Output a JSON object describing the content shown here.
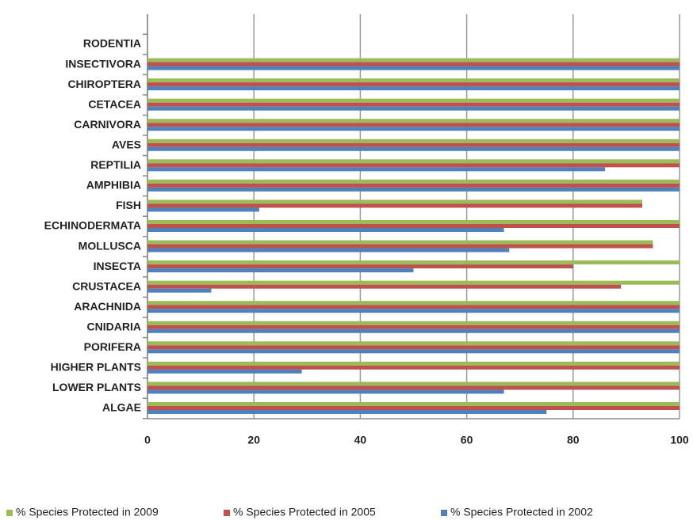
{
  "chart_data": {
    "type": "barh",
    "categories": [
      "RODENTIA",
      "INSECTIVORA",
      "CHIROPTERA",
      "CETACEA",
      "CARNIVORA",
      "AVES",
      "REPTILIA",
      "AMPHIBIA",
      "FISH",
      "ECHINODERMATA",
      "MOLLUSCA",
      "INSECTA",
      "CRUSTACEA",
      "ARACHNIDA",
      "CNIDARIA",
      "PORIFERA",
      "HIGHER PLANTS",
      "LOWER PLANTS",
      "ALGAE"
    ],
    "series": [
      {
        "name": "% Species Protected in 2009",
        "color": "#9bbb59",
        "values": [
          0,
          100,
          100,
          100,
          100,
          100,
          100,
          100,
          93,
          100,
          95,
          100,
          100,
          100,
          100,
          100,
          100,
          100,
          100
        ]
      },
      {
        "name": "% Species Protected in 2005",
        "color": "#c0504d",
        "values": [
          0,
          100,
          100,
          100,
          100,
          100,
          100,
          100,
          93,
          100,
          95,
          80,
          89,
          100,
          100,
          100,
          100,
          100,
          100
        ]
      },
      {
        "name": "% Species Protected in 2002",
        "color": "#4f81bd",
        "values": [
          0,
          100,
          100,
          100,
          100,
          100,
          86,
          100,
          21,
          67,
          68,
          50,
          12,
          100,
          100,
          100,
          29,
          67,
          75
        ]
      }
    ],
    "xlim": [
      0,
      100
    ],
    "xticks": [
      0,
      20,
      40,
      60,
      80,
      100
    ],
    "grid": true,
    "legend": "bottom"
  }
}
